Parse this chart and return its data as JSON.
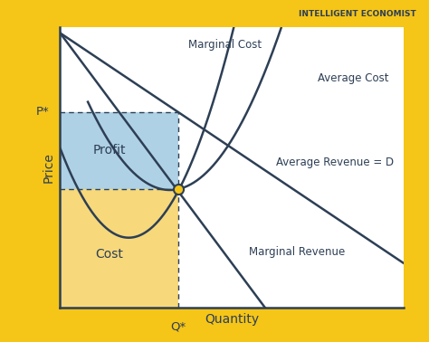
{
  "background_outer": "#f5c518",
  "background_inner": "#ffffff",
  "line_color": "#2d3f55",
  "profit_color": "#7ab3d4",
  "profit_alpha": 0.6,
  "cost_color": "#f5c842",
  "cost_alpha": 0.7,
  "dot_color": "#f5c518",
  "dot_edge_color": "#2d3f55",
  "axis_color": "#2d3f55",
  "text_color": "#2d3f55",
  "dashed_color": "#2d3f55",
  "title_text": "INTELLIGENT ECONOMIST",
  "label_price": "Price",
  "label_quantity": "Quantity",
  "label_mc": "Marginal Cost",
  "label_ac": "Average Cost",
  "label_ar": "Average Revenue = D",
  "label_mr": "Marginal Revenue",
  "label_profit": "Profit",
  "label_cost": "Cost",
  "label_pstar": "P*",
  "label_qstar": "Q*",
  "xmin": 0,
  "xmax": 10,
  "ymin": 0,
  "ymax": 10,
  "qstar": 3.7,
  "pstar": 6.8,
  "ac_at_qstar": 4.7
}
